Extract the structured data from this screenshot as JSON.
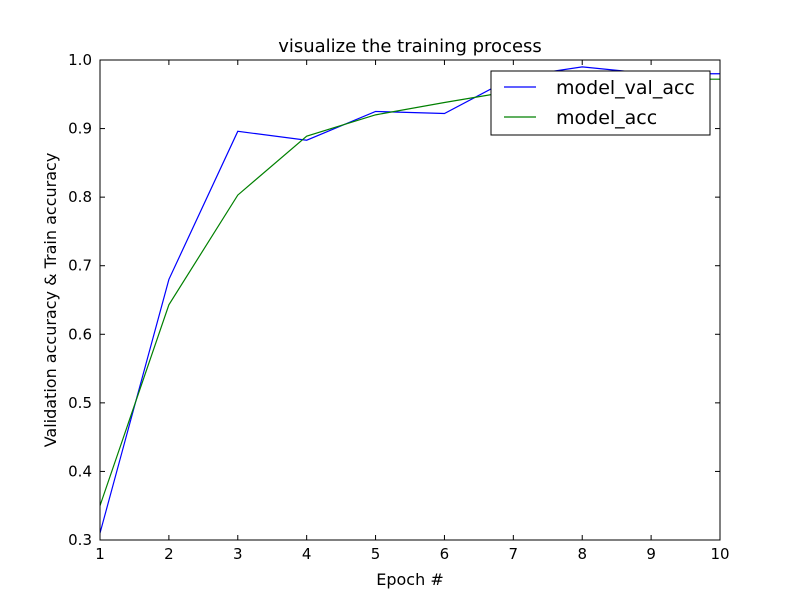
{
  "chart_data": {
    "type": "line",
    "title": "visualize the training process",
    "xlabel": "Epoch #",
    "ylabel": "Validation accuracy & Train accuracy",
    "xlim": [
      1,
      10
    ],
    "ylim": [
      0.3,
      1.0
    ],
    "x": [
      1,
      2,
      3,
      4,
      5,
      6,
      7,
      8,
      9,
      10
    ],
    "xticks": [
      "1",
      "2",
      "3",
      "4",
      "5",
      "6",
      "7",
      "8",
      "9",
      "10"
    ],
    "yticks": [
      "0.3",
      "0.4",
      "0.5",
      "0.6",
      "0.7",
      "0.8",
      "0.9",
      "1.0"
    ],
    "grid": false,
    "legend_position": "top-right",
    "series": [
      {
        "name": "model_val_acc",
        "color": "#0000ff",
        "values": [
          0.31,
          0.68,
          0.896,
          0.883,
          0.925,
          0.922,
          0.975,
          0.99,
          0.98,
          0.98
        ]
      },
      {
        "name": "model_acc",
        "color": "#008000",
        "values": [
          0.35,
          0.643,
          0.803,
          0.889,
          0.92,
          0.938,
          0.955,
          0.968,
          0.972,
          0.972
        ]
      }
    ]
  }
}
